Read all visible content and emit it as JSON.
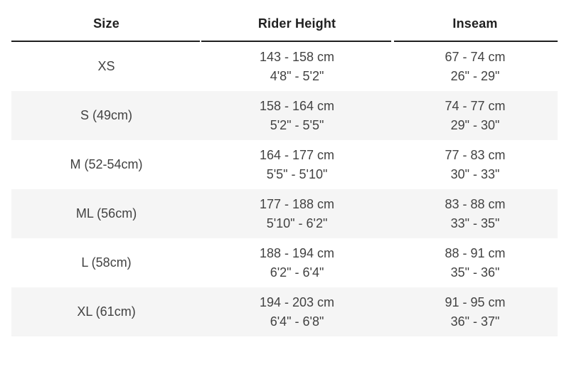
{
  "colors": {
    "stripe": "#f5f5f5",
    "header_border": "#1f1f1f",
    "header_text": "#212121",
    "body_text": "#424242"
  },
  "table": {
    "columns": [
      {
        "label": "Size"
      },
      {
        "label": "Rider Height"
      },
      {
        "label": "Inseam"
      }
    ],
    "rows": [
      {
        "size": "XS",
        "height_cm": "143 - 158 cm",
        "height_ft": "4'8\" - 5'2\"",
        "inseam_cm": "67 - 74 cm",
        "inseam_in": "26\" - 29\""
      },
      {
        "size": "S (49cm)",
        "height_cm": "158 - 164 cm",
        "height_ft": "5'2\" - 5'5\"",
        "inseam_cm": "74 - 77 cm",
        "inseam_in": "29\" - 30\""
      },
      {
        "size": "M (52-54cm)",
        "height_cm": "164 - 177 cm",
        "height_ft": "5'5\" - 5'10\"",
        "inseam_cm": "77 - 83 cm",
        "inseam_in": "30\" - 33\""
      },
      {
        "size": "ML (56cm)",
        "height_cm": "177 - 188 cm",
        "height_ft": "5'10\" - 6'2\"",
        "inseam_cm": "83 - 88 cm",
        "inseam_in": "33\" - 35\""
      },
      {
        "size": "L (58cm)",
        "height_cm": "188 - 194 cm",
        "height_ft": "6'2\" - 6'4\"",
        "inseam_cm": "88 - 91 cm",
        "inseam_in": "35\" - 36\""
      },
      {
        "size": "XL (61cm)",
        "height_cm": "194 - 203 cm",
        "height_ft": "6'4\" - 6'8\"",
        "inseam_cm": "91 - 95 cm",
        "inseam_in": "36\" - 37\""
      }
    ]
  }
}
